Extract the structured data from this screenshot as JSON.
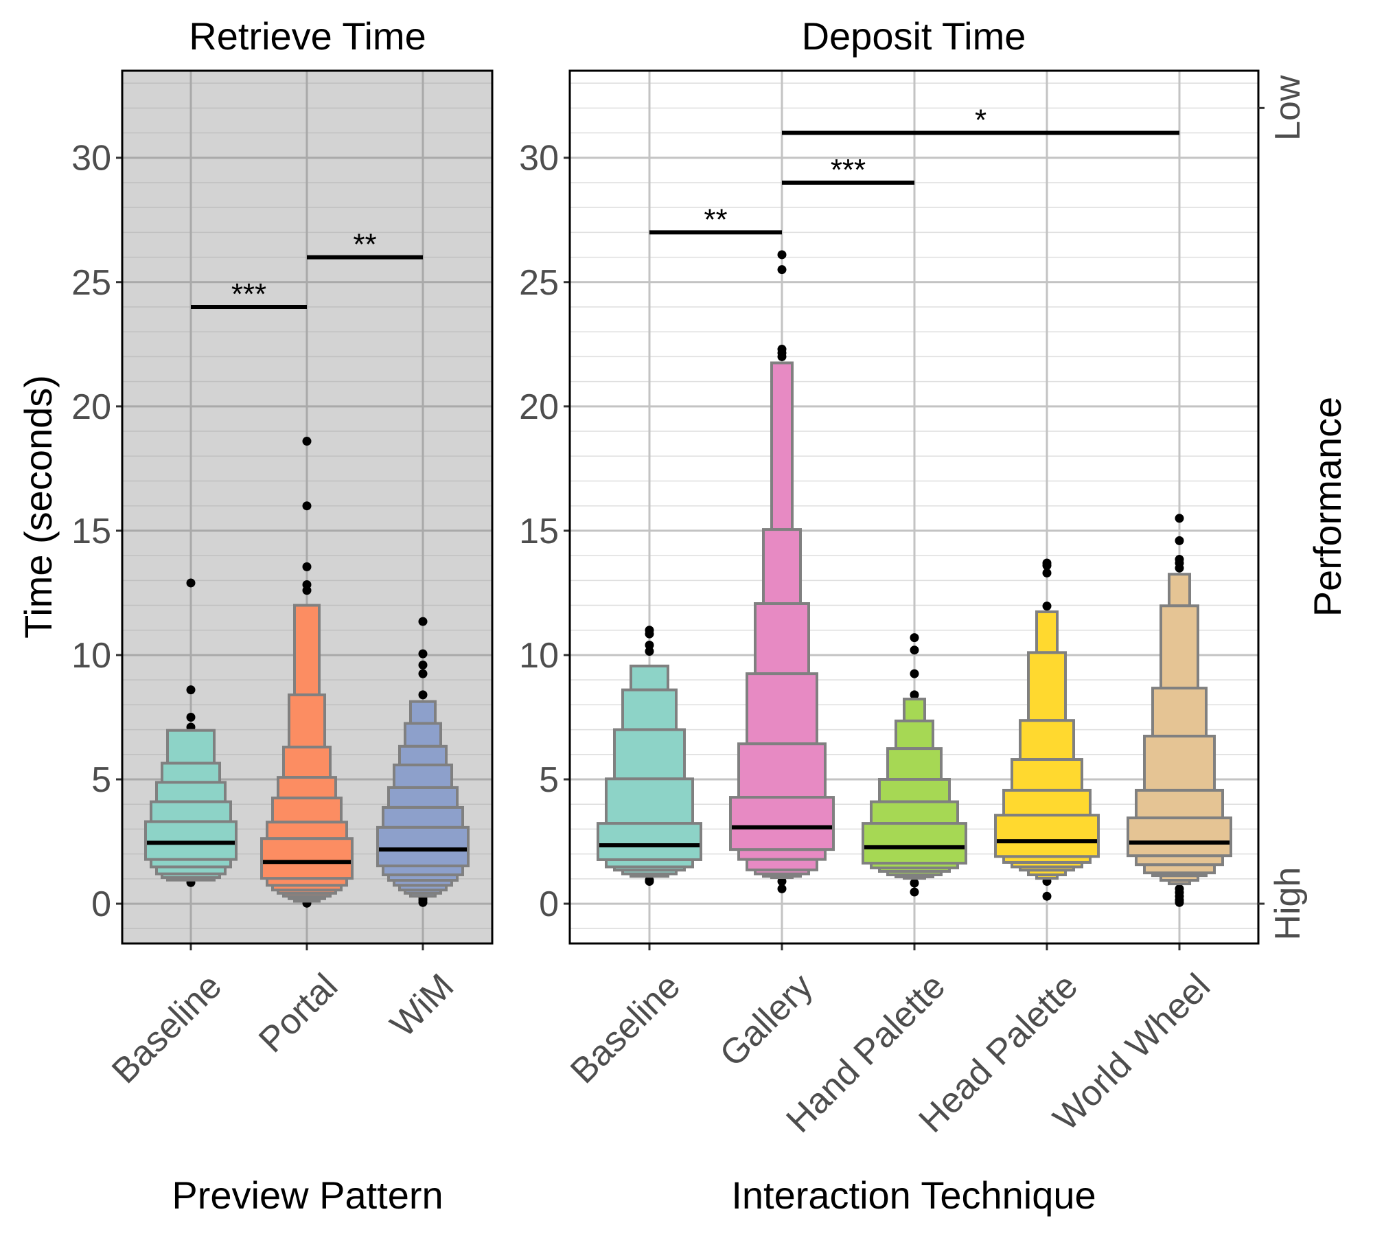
{
  "chart_data": [
    {
      "type": "letter-value-boxplot",
      "title": "Retrieve Time",
      "xlabel": "Preview Pattern",
      "ylabel": "Time (seconds)",
      "ylim": [
        -1.6,
        33.5
      ],
      "yticks": [
        0,
        5,
        10,
        15,
        20,
        25,
        30
      ],
      "background": "#d3d3d3",
      "grid": true,
      "categories": [
        "Baseline",
        "Portal",
        "WiM"
      ],
      "series": [
        {
          "name": "Baseline",
          "color": "#8dd3c7",
          "median": 2.45,
          "upper": [
            3.3,
            4.1,
            4.88,
            5.65,
            6.97
          ],
          "lower": [
            1.78,
            1.48,
            1.2,
            1.05,
            0.95
          ],
          "outliers": [
            12.9,
            8.6,
            7.5,
            7.1,
            0.85
          ]
        },
        {
          "name": "Portal",
          "color": "#fc8d62",
          "median": 1.68,
          "upper": [
            2.62,
            3.28,
            4.25,
            5.08,
            6.3,
            8.4,
            12.0
          ],
          "lower": [
            1.02,
            0.74,
            0.55,
            0.42,
            0.3,
            0.2,
            0.1
          ],
          "outliers": [
            18.6,
            16.0,
            13.55,
            12.83,
            12.6,
            0.02
          ]
        },
        {
          "name": "WiM",
          "color": "#8da0cb",
          "median": 2.18,
          "upper": [
            3.07,
            3.87,
            4.67,
            5.58,
            6.33,
            7.25,
            8.13
          ],
          "lower": [
            1.52,
            1.16,
            0.94,
            0.74,
            0.55,
            0.42,
            0.3
          ],
          "outliers": [
            11.35,
            10.05,
            9.6,
            9.25,
            8.4,
            0.25,
            0.15,
            0.05
          ]
        }
      ],
      "significance": [
        {
          "from": "Baseline",
          "to": "Portal",
          "y": 24,
          "label": "***"
        },
        {
          "from": "Portal",
          "to": "WiM",
          "y": 26,
          "label": "**"
        }
      ]
    },
    {
      "type": "letter-value-boxplot",
      "title": "Deposit Time",
      "xlabel": "Interaction Technique",
      "ylabel": "",
      "ylim": [
        -1.6,
        33.5
      ],
      "yticks": [
        0,
        5,
        10,
        15,
        20,
        25,
        30
      ],
      "background": "#ffffff",
      "grid": true,
      "categories": [
        "Baseline",
        "Gallery",
        "Hand Palette",
        "Head Palette",
        "World Wheel"
      ],
      "series": [
        {
          "name": "Baseline",
          "color": "#8dd3c7",
          "median": 2.35,
          "upper": [
            3.23,
            5.02,
            7.0,
            8.6,
            9.56
          ],
          "lower": [
            1.77,
            1.48,
            1.35,
            1.2,
            1.1
          ],
          "outliers": [
            11.0,
            10.85,
            10.4,
            10.15,
            0.95,
            0.9
          ]
        },
        {
          "name": "Gallery",
          "color": "#e78ac3",
          "median": 3.07,
          "upper": [
            4.28,
            6.43,
            9.25,
            12.07,
            15.05,
            21.75
          ],
          "lower": [
            2.18,
            1.78,
            1.36,
            1.2,
            1.1,
            1.05
          ],
          "outliers": [
            26.1,
            25.5,
            22.3,
            22.15,
            22.0,
            0.9,
            0.6
          ]
        },
        {
          "name": "Hand Palette",
          "color": "#a6d854",
          "median": 2.27,
          "upper": [
            3.23,
            4.1,
            5.0,
            6.24,
            7.35,
            8.23
          ],
          "lower": [
            1.63,
            1.44,
            1.3,
            1.16,
            1.08,
            1.02
          ],
          "outliers": [
            10.7,
            10.2,
            9.25,
            8.4,
            0.83,
            0.47
          ]
        },
        {
          "name": "Head Palette",
          "color": "#ffd92f",
          "median": 2.51,
          "upper": [
            3.56,
            4.56,
            5.8,
            7.37,
            10.1,
            11.74
          ],
          "lower": [
            1.9,
            1.66,
            1.48,
            1.35,
            1.16,
            1.02
          ],
          "outliers": [
            13.7,
            13.6,
            13.3,
            11.97,
            0.9,
            0.3
          ]
        },
        {
          "name": "World Wheel",
          "color": "#e5c494",
          "median": 2.46,
          "upper": [
            3.45,
            4.56,
            6.74,
            8.67,
            11.98,
            13.25
          ],
          "lower": [
            1.93,
            1.57,
            1.24,
            1.13,
            0.94,
            0.8
          ],
          "outliers": [
            15.5,
            14.6,
            13.85,
            13.7,
            13.5,
            0.6,
            0.45,
            0.3,
            0.15,
            0.05
          ]
        }
      ],
      "significance": [
        {
          "from": "Baseline",
          "to": "Gallery",
          "y": 27,
          "label": "**"
        },
        {
          "from": "Gallery",
          "to": "Hand Palette",
          "y": 29,
          "label": "***"
        },
        {
          "from": "Gallery",
          "to": "World Wheel",
          "y": 31,
          "label": "*"
        }
      ],
      "secondary_axis": {
        "title": "Performance",
        "ticks": [
          {
            "value": 32,
            "label": "Low"
          },
          {
            "value": 0,
            "label": "High"
          }
        ]
      }
    }
  ]
}
